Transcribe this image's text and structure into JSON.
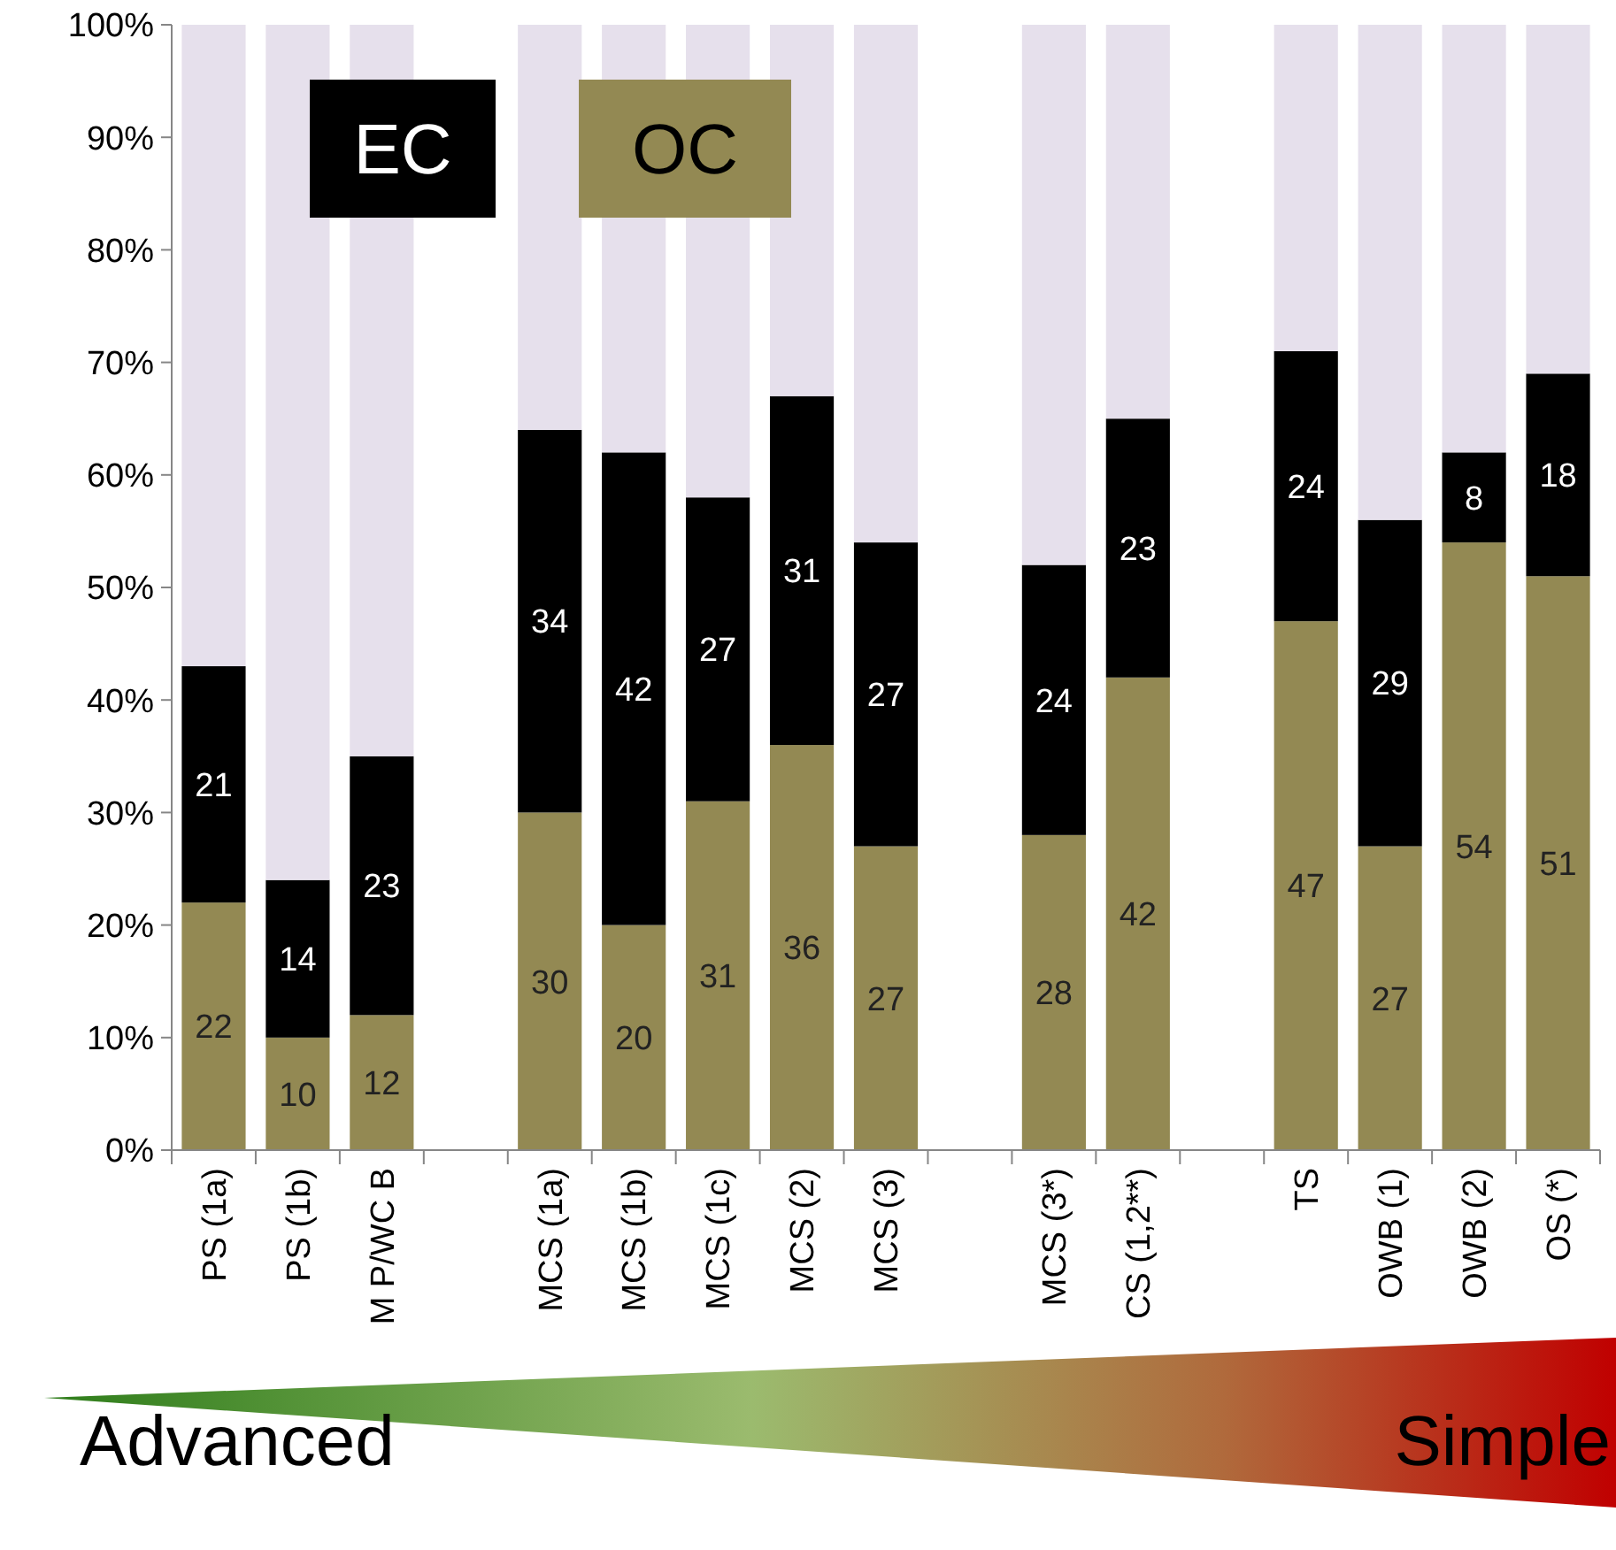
{
  "chart_data": {
    "type": "bar",
    "stacked": true,
    "categories": [
      "PS (1a)",
      "PS (1b)",
      "M P/WC B",
      null,
      "MCS (1a)",
      "MCS (1b)",
      "MCS (1c)",
      "MCS (2)",
      "MCS (3)",
      null,
      "MCS (3*)",
      "CS (1,2**)",
      null,
      "TS",
      "OWB (1)",
      "OWB (2)",
      "OS (*)"
    ],
    "series": [
      {
        "name": "OC",
        "color": "#938953",
        "values": [
          22,
          10,
          12,
          null,
          30,
          20,
          31,
          36,
          27,
          null,
          28,
          42,
          null,
          47,
          27,
          54,
          51
        ],
        "value_labels": [
          "22",
          "10",
          "12",
          null,
          "30",
          "20",
          "31",
          "36",
          "27",
          null,
          "28",
          "42",
          null,
          "47",
          "27",
          "54",
          "51"
        ]
      },
      {
        "name": "EC",
        "color": "#000000",
        "values": [
          21,
          14,
          23,
          null,
          34,
          42,
          27,
          31,
          27,
          null,
          24,
          23,
          null,
          24,
          29,
          8,
          18
        ],
        "value_labels": [
          "21",
          "14",
          "23",
          null,
          "34",
          "42",
          "27",
          "31",
          "27",
          null,
          "24",
          "23",
          null,
          "24",
          "29",
          "8",
          "18"
        ]
      },
      {
        "color": "#e6e0ec",
        "values": [
          57,
          76,
          65,
          null,
          36,
          38,
          42,
          33,
          46,
          null,
          48,
          35,
          null,
          29,
          44,
          38,
          31
        ]
      }
    ],
    "ylim": [
      0,
      100
    ],
    "yticks": [
      {
        "value": 0,
        "label": "0%"
      },
      {
        "value": 10,
        "label": "10%"
      },
      {
        "value": 20,
        "label": "20%"
      },
      {
        "value": 30,
        "label": "30%"
      },
      {
        "value": 40,
        "label": "40%"
      },
      {
        "value": 50,
        "label": "50%"
      },
      {
        "value": 60,
        "label": "60%"
      },
      {
        "value": 70,
        "label": "70%"
      },
      {
        "value": 80,
        "label": "80%"
      },
      {
        "value": 90,
        "label": "90%"
      },
      {
        "value": 100,
        "label": "100%"
      }
    ],
    "legend": "top left",
    "annotations": [
      "Advanced",
      "Simple"
    ]
  }
}
